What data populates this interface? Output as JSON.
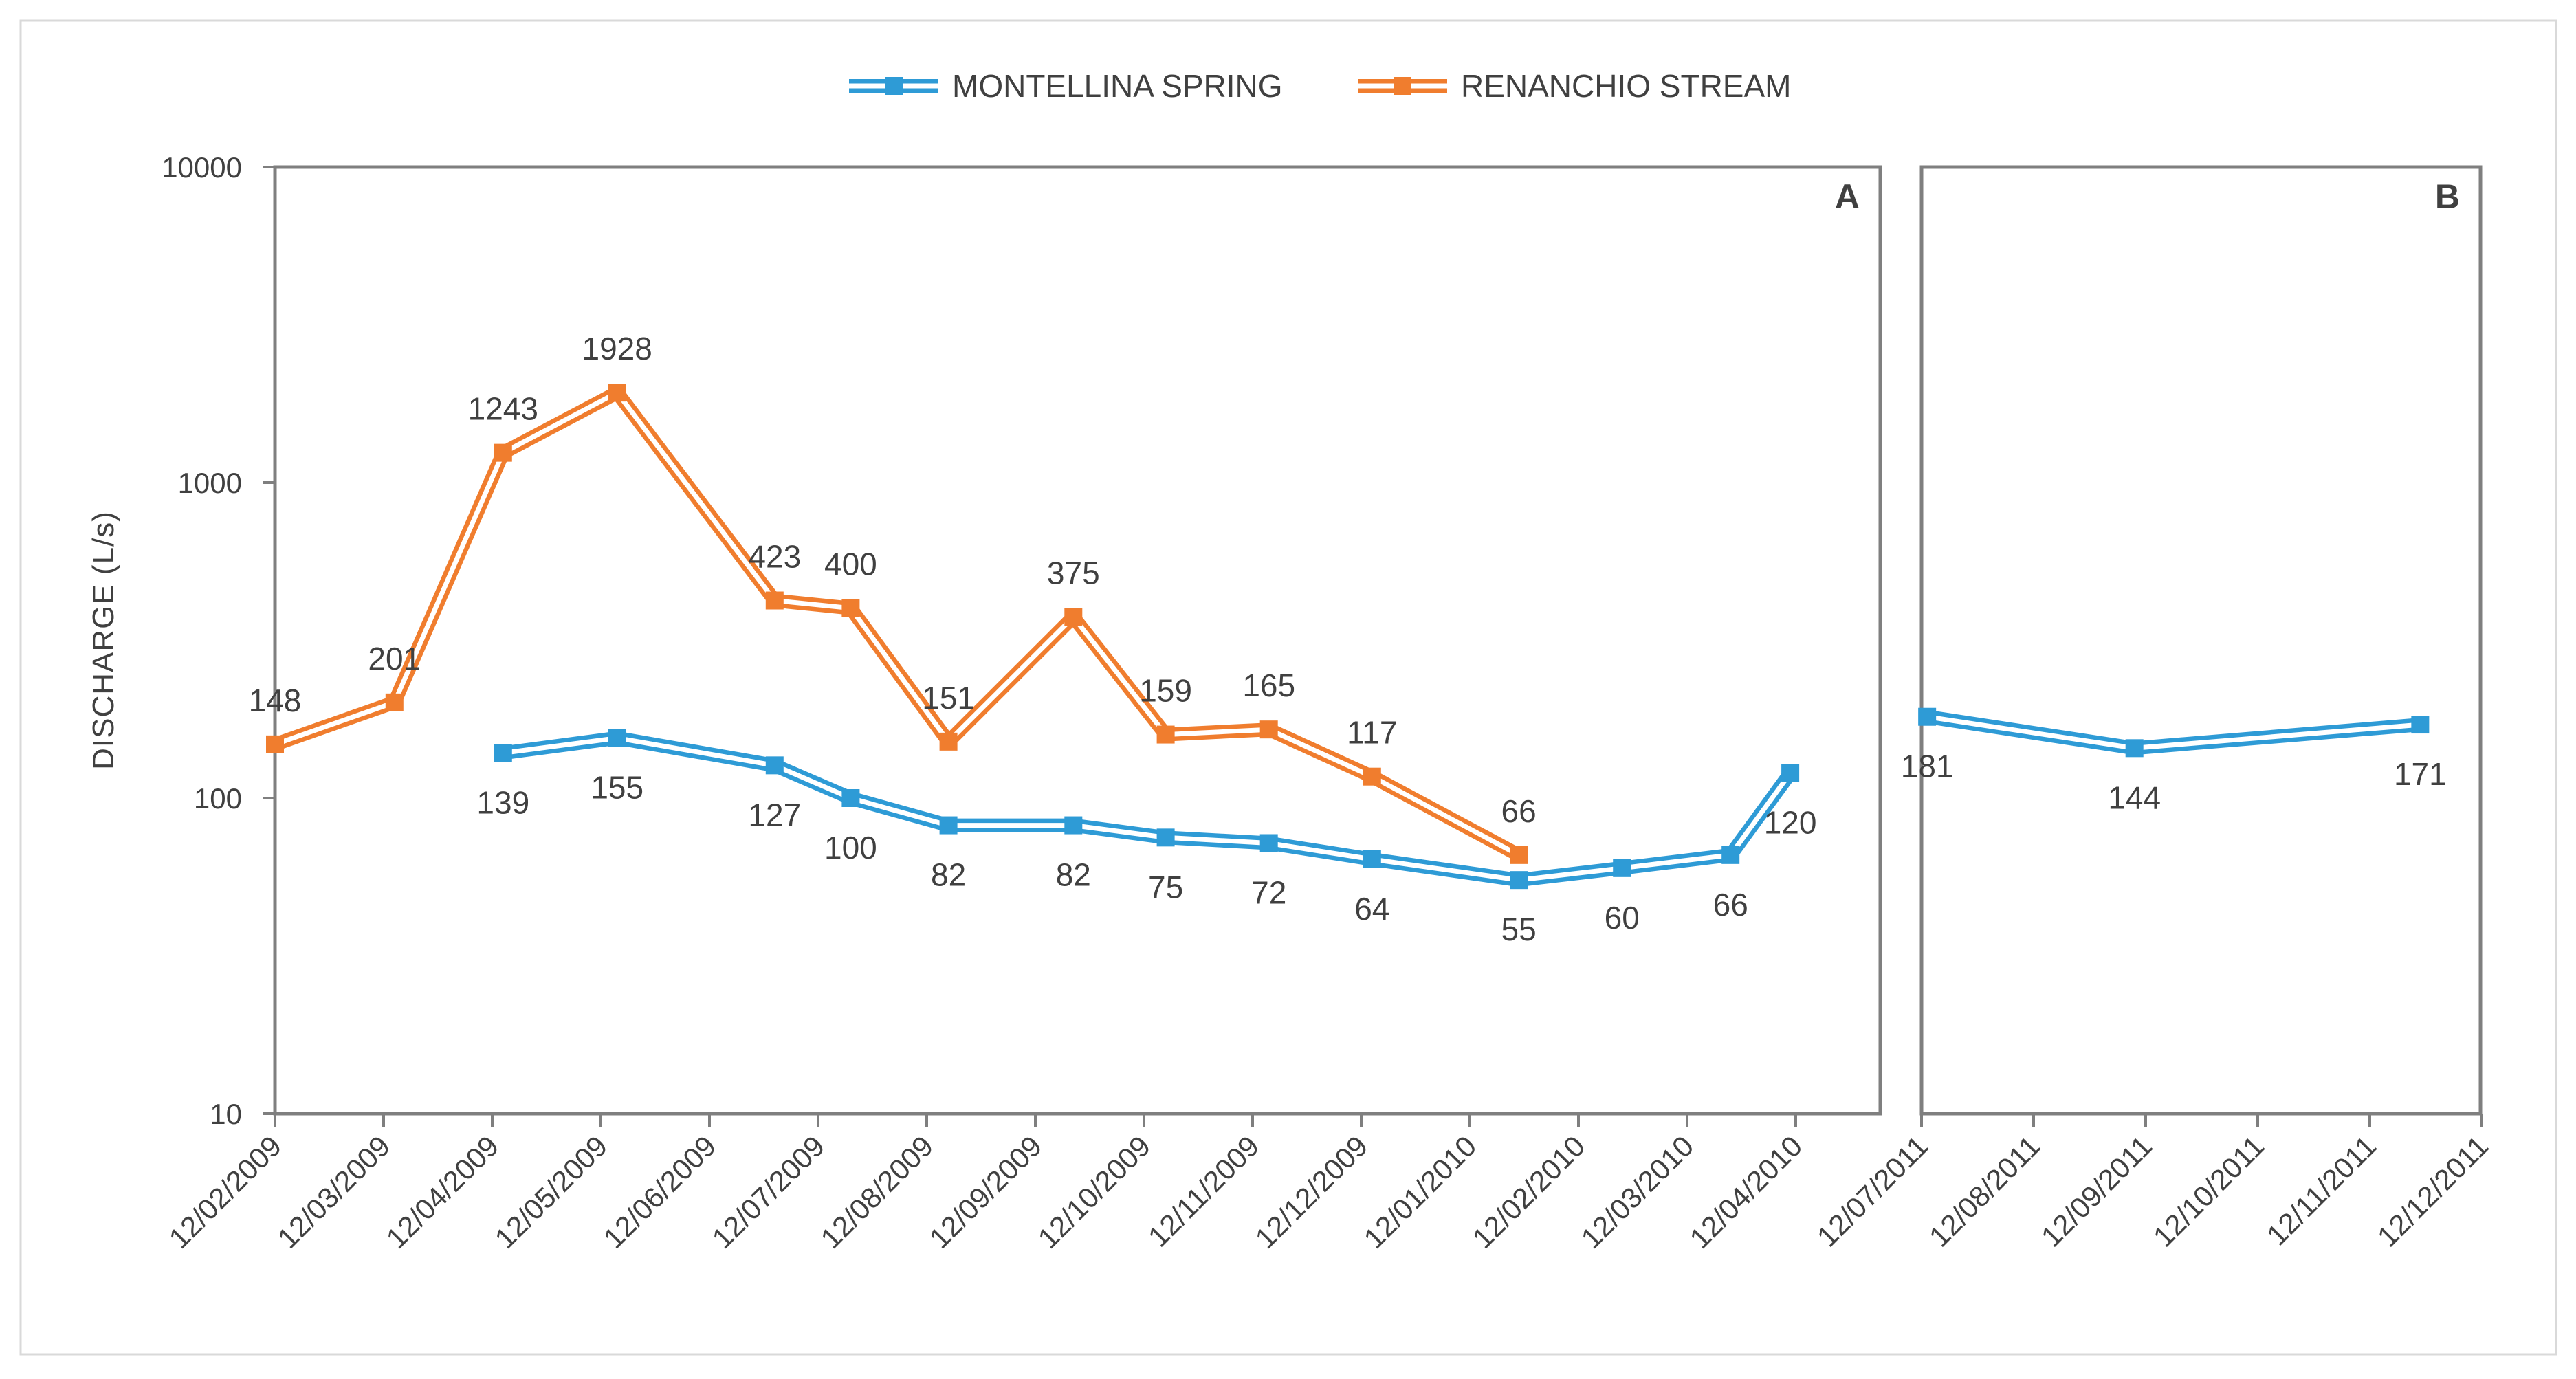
{
  "chart_data": {
    "type": "line",
    "ylabel": "DISCHARGE (L/s)",
    "yscale": "log",
    "ylim": [
      10,
      10000
    ],
    "yticks": [
      "10",
      "100",
      "1000",
      "10000"
    ],
    "legend_position": "top-center",
    "colors": {
      "montellina": "#2E9BD6",
      "renanchio": "#F07D2E",
      "axis": "#7F7F7F",
      "text": "#404040"
    },
    "legend": [
      {
        "name": "MONTELLINA SPRING",
        "color": "#2E9BD6"
      },
      {
        "name": "RENANCHIO STREAM",
        "color": "#F07D2E"
      }
    ],
    "panels": [
      {
        "label": "A",
        "x_ticks": [
          "12/02/2009",
          "12/03/2009",
          "12/04/2009",
          "12/05/2009",
          "12/06/2009",
          "12/07/2009",
          "12/08/2009",
          "12/09/2009",
          "12/10/2009",
          "12/11/2009",
          "12/12/2009",
          "12/01/2010",
          "12/02/2010",
          "12/03/2010",
          "12/04/2010"
        ],
        "x_range": [
          0,
          15.2
        ],
        "series": [
          {
            "name": "MONTELLINA SPRING",
            "color": "#2E9BD6",
            "points": [
              {
                "x": 2.1,
                "y": 139,
                "label": "139"
              },
              {
                "x": 3.15,
                "y": 155,
                "label": "155"
              },
              {
                "x": 4.6,
                "y": 127,
                "label": "127"
              },
              {
                "x": 5.3,
                "y": 100,
                "label": "100"
              },
              {
                "x": 6.2,
                "y": 82,
                "label": "82"
              },
              {
                "x": 7.35,
                "y": 82,
                "label": "82"
              },
              {
                "x": 8.2,
                "y": 75,
                "label": "75"
              },
              {
                "x": 9.15,
                "y": 72,
                "label": "72"
              },
              {
                "x": 10.1,
                "y": 64,
                "label": "64"
              },
              {
                "x": 11.45,
                "y": 55,
                "label": "55"
              },
              {
                "x": 12.4,
                "y": 60,
                "label": "60"
              },
              {
                "x": 13.4,
                "y": 66,
                "label": "66"
              },
              {
                "x": 13.95,
                "y": 120,
                "label": "120"
              }
            ]
          },
          {
            "name": "RENANCHIO STREAM",
            "color": "#F07D2E",
            "points": [
              {
                "x": 0.0,
                "y": 148,
                "label": "148"
              },
              {
                "x": 1.1,
                "y": 201,
                "label": "201"
              },
              {
                "x": 2.1,
                "y": 1243,
                "label": "1243"
              },
              {
                "x": 3.15,
                "y": 1928,
                "label": "1928"
              },
              {
                "x": 4.6,
                "y": 423,
                "label": "423"
              },
              {
                "x": 5.3,
                "y": 400,
                "label": "400"
              },
              {
                "x": 6.2,
                "y": 151,
                "label": "151"
              },
              {
                "x": 7.35,
                "y": 375,
                "label": "375"
              },
              {
                "x": 8.2,
                "y": 159,
                "label": "159"
              },
              {
                "x": 9.15,
                "y": 165,
                "label": "165"
              },
              {
                "x": 10.1,
                "y": 117,
                "label": "117"
              },
              {
                "x": 11.45,
                "y": 66,
                "label": "66"
              }
            ]
          }
        ]
      },
      {
        "label": "B",
        "x_ticks": [
          "12/07/2011",
          "12/08/2011",
          "12/09/2011",
          "12/10/2011",
          "12/11/2011",
          "12/12/2011"
        ],
        "x_range": [
          0,
          5.2
        ],
        "series": [
          {
            "name": "MONTELLINA SPRING",
            "color": "#2E9BD6",
            "points": [
              {
                "x": 0.05,
                "y": 181,
                "label": "181"
              },
              {
                "x": 1.9,
                "y": 144,
                "label": "144"
              },
              {
                "x": 4.45,
                "y": 171,
                "label": "171"
              }
            ]
          }
        ]
      }
    ]
  }
}
